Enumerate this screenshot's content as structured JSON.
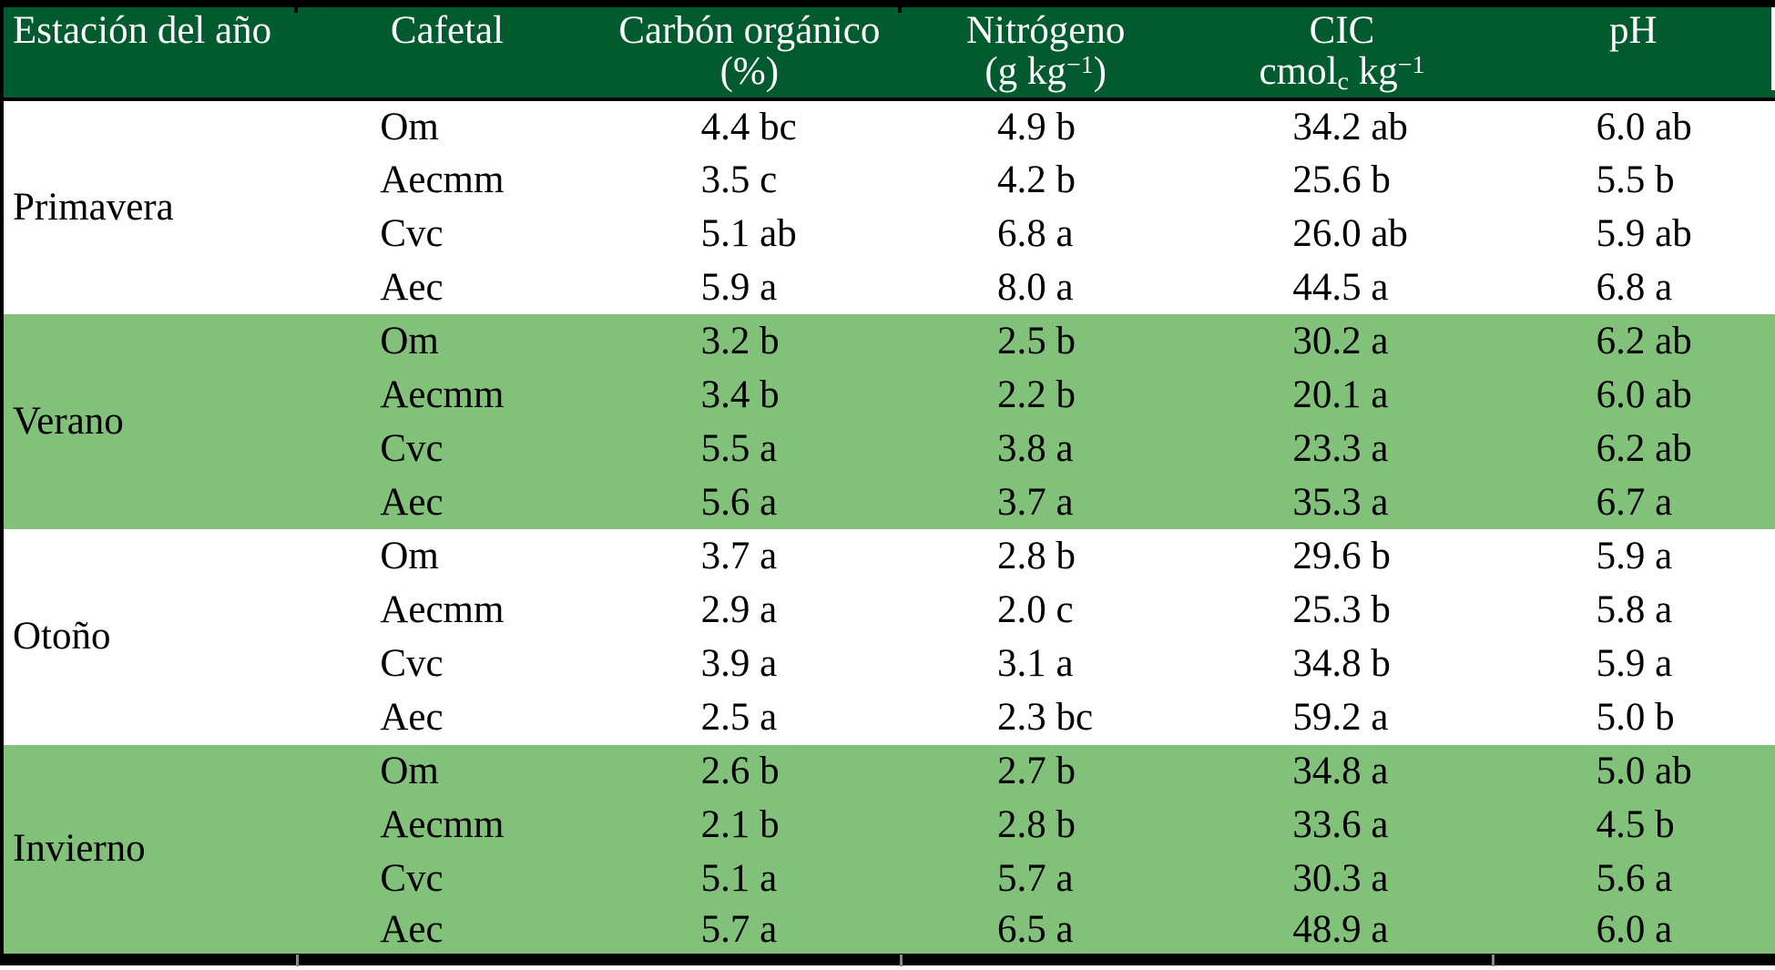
{
  "colors": {
    "header_green": "#015b2e",
    "row_green": "#82c17a",
    "border_black": "#000000"
  },
  "table": {
    "header": {
      "estacion": "Estación del año",
      "cafetal": "Cafetal",
      "carbono_line1": "Carbón orgánico",
      "carbono_line2": "(%)",
      "nitrogeno_line1": "Nitrógeno",
      "nitrogeno_unit_prefix": "(g kg",
      "nitrogeno_unit_sup": "−1",
      "nitrogeno_unit_suffix": ")",
      "cic_line1": "CIC",
      "cic_unit_prefix": "cmol",
      "cic_unit_sub": "c",
      "cic_unit_mid": " kg",
      "cic_unit_sup": "−1",
      "ph": "pH"
    },
    "sections": [
      {
        "season": "Primavera",
        "shaded": false,
        "rows": [
          {
            "cafetal": "Om",
            "carbono": "4.4 bc",
            "nitrogeno": "4.9 b",
            "cic": "34.2 ab",
            "ph": "6.0 ab"
          },
          {
            "cafetal": "Aecmm",
            "carbono": "3.5 c",
            "nitrogeno": "4.2 b",
            "cic": "25.6 b",
            "ph": "5.5 b"
          },
          {
            "cafetal": "Cvc",
            "carbono": "5.1 ab",
            "nitrogeno": "6.8 a",
            "cic": "26.0 ab",
            "ph": "5.9 ab"
          },
          {
            "cafetal": "Aec",
            "carbono": "5.9 a",
            "nitrogeno": "8.0 a",
            "cic": "44.5 a",
            "ph": "6.8 a"
          }
        ]
      },
      {
        "season": "Verano",
        "shaded": true,
        "rows": [
          {
            "cafetal": "Om",
            "carbono": "3.2 b",
            "nitrogeno": "2.5 b",
            "cic": "30.2 a",
            "ph": "6.2 ab"
          },
          {
            "cafetal": "Aecmm",
            "carbono": "3.4 b",
            "nitrogeno": "2.2 b",
            "cic": "20.1 a",
            "ph": "6.0 ab"
          },
          {
            "cafetal": "Cvc",
            "carbono": "5.5 a",
            "nitrogeno": "3.8 a",
            "cic": "23.3 a",
            "ph": "6.2 ab"
          },
          {
            "cafetal": "Aec",
            "carbono": "5.6 a",
            "nitrogeno": "3.7 a",
            "cic": "35.3 a",
            "ph": "6.7 a"
          }
        ]
      },
      {
        "season": "Otoño",
        "shaded": false,
        "rows": [
          {
            "cafetal": "Om",
            "carbono": "3.7 a",
            "nitrogeno": "2.8 b",
            "cic": "29.6 b",
            "ph": "5.9 a"
          },
          {
            "cafetal": "Aecmm",
            "carbono": "2.9 a",
            "nitrogeno": "2.0 c",
            "cic": "25.3 b",
            "ph": "5.8 a"
          },
          {
            "cafetal": "Cvc",
            "carbono": "3.9 a",
            "nitrogeno": "3.1 a",
            "cic": "34.8 b",
            "ph": "5.9 a"
          },
          {
            "cafetal": "Aec",
            "carbono": "2.5 a",
            "nitrogeno": "2.3 bc",
            "cic": "59.2 a",
            "ph": "5.0 b"
          }
        ]
      },
      {
        "season": "Invierno",
        "shaded": true,
        "rows": [
          {
            "cafetal": "Om",
            "carbono": "2.6 b",
            "nitrogeno": "2.7 b",
            "cic": "34.8 a",
            "ph": "5.0 ab"
          },
          {
            "cafetal": "Aecmm",
            "carbono": "2.1 b",
            "nitrogeno": "2.8 b",
            "cic": "33.6 a",
            "ph": "4.5 b"
          },
          {
            "cafetal": "Cvc",
            "carbono": "5.1 a",
            "nitrogeno": "5.7 a",
            "cic": "30.3 a",
            "ph": "5.6 a"
          },
          {
            "cafetal": "Aec",
            "carbono": "5.7 a",
            "nitrogeno": "6.5 a",
            "cic": "48.9 a",
            "ph": "6.0 a"
          }
        ]
      }
    ]
  }
}
